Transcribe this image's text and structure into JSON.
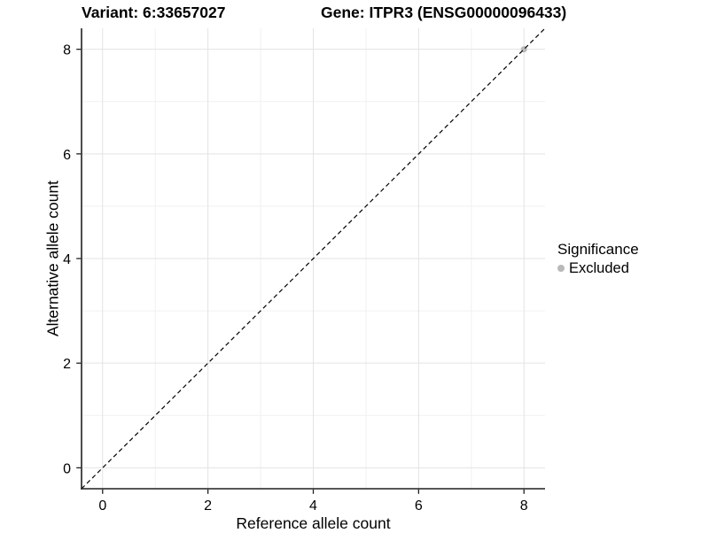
{
  "chart_data": {
    "type": "scatter",
    "titles": {
      "left": "Variant: 6:33657027",
      "right": "Gene: ITPR3 (ENSG00000096433)"
    },
    "xlabel": "Reference allele count",
    "ylabel": "Alternative allele count",
    "xlim": [
      -0.4,
      8.4
    ],
    "ylim": [
      -0.4,
      8.4
    ],
    "xticks": {
      "major": [
        0,
        2,
        4,
        6,
        8
      ],
      "minor": [
        1,
        3,
        5,
        7
      ]
    },
    "yticks": {
      "major": [
        0,
        2,
        4,
        6,
        8
      ],
      "minor": [
        1,
        3,
        5,
        7
      ]
    },
    "grid": "major+minor",
    "legend": {
      "title": "Significance",
      "position": "right",
      "items": [
        {
          "label": "Excluded",
          "color": "#b9b9b9",
          "marker": "circle"
        }
      ]
    },
    "series": [
      {
        "name": "Excluded",
        "color": "#b9b9b9",
        "marker_radius": 3.5,
        "points": [
          [
            8,
            8
          ]
        ]
      }
    ],
    "identity_line": {
      "from": [
        -0.4,
        -0.4
      ],
      "to": [
        8.4,
        8.4
      ],
      "style": "dashed",
      "color": "#000000"
    },
    "colors": {
      "axis": "#1f1f1f",
      "grid_major": "#e3e3e3",
      "grid_minor": "#f1f1f1",
      "tick_label": "#000000",
      "background": "#ffffff"
    }
  }
}
